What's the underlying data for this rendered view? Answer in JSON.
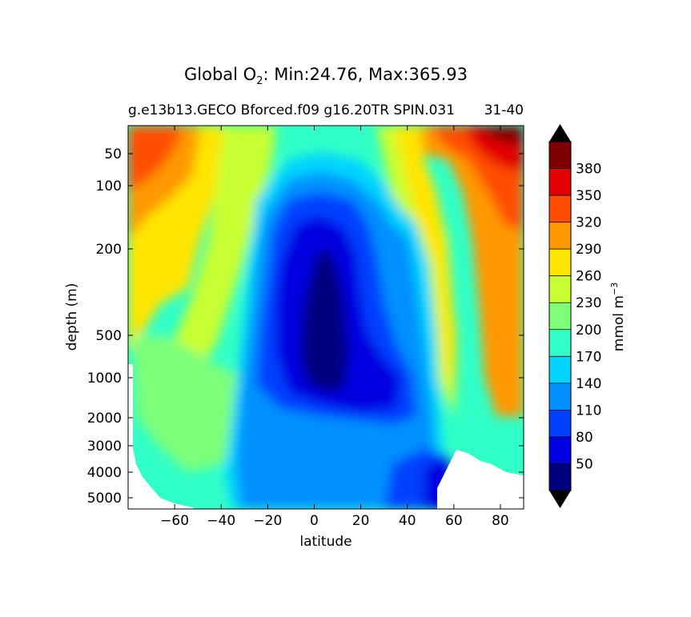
{
  "chart_data": {
    "type": "contourf",
    "title_prefix": "Global O",
    "title_sub": "2",
    "title_suffix": ": Min:24.76, Max:365.93",
    "subtitle": "g.e13b13.GECO Bforced.f09 g16.20TR SPIN.031",
    "subtitle_right": "31-40",
    "xlabel": "latitude",
    "ylabel": "depth (m)",
    "xlim": [
      -80,
      90
    ],
    "x_ticks": [
      -60,
      -40,
      -20,
      0,
      20,
      40,
      60,
      80
    ],
    "x_tick_labels": [
      "−60",
      "−40",
      "−20",
      "0",
      "20",
      "40",
      "60",
      "80"
    ],
    "y_ticks": [
      50,
      100,
      200,
      500,
      1000,
      2000,
      3000,
      4000,
      5000
    ],
    "y_tick_labels": [
      "50",
      "100",
      "200",
      "500",
      "1000",
      "2000",
      "3000",
      "4000",
      "5000"
    ],
    "colorbar_label": "mmol m",
    "colorbar_label_sup": "−3",
    "levels": [
      20,
      50,
      80,
      110,
      140,
      170,
      200,
      230,
      260,
      290,
      320,
      350,
      380,
      410
    ],
    "level_labels": [
      "50",
      "80",
      "110",
      "140",
      "170",
      "200",
      "230",
      "260",
      "290",
      "320",
      "350",
      "380"
    ],
    "colors": [
      "#00007f",
      "#0000e0",
      "#0040ff",
      "#0090ff",
      "#00d4ff",
      "#30ffc7",
      "#7dff7a",
      "#c7ff30",
      "#ffe500",
      "#ff9800",
      "#ff4d00",
      "#e30000",
      "#7f0000"
    ],
    "extend_colors": {
      "under": "#000000",
      "over": "#000000"
    },
    "stats": {
      "min": 24.76,
      "max": 365.93
    }
  }
}
